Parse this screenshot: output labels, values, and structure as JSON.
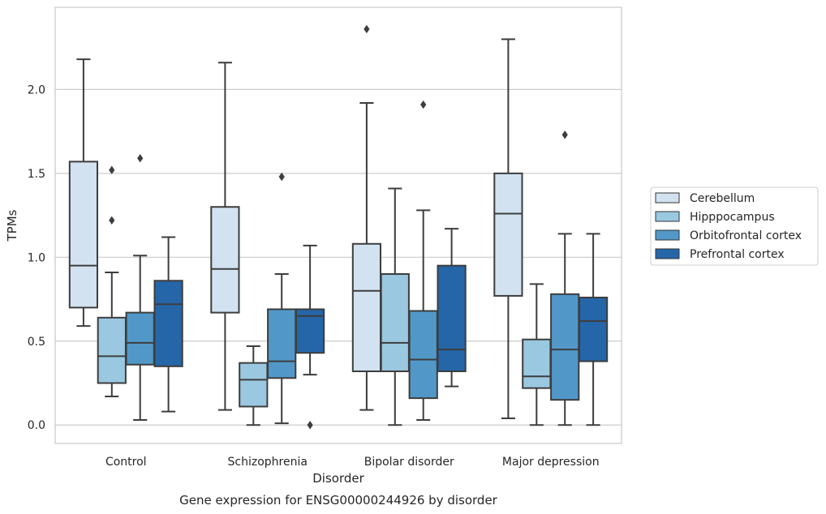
{
  "chart_data": {
    "type": "box",
    "caption": "Gene expression for ENSG00000244926 by disorder",
    "xlabel": "Disorder",
    "ylabel": "TPMs",
    "ylim": [
      -0.11,
      2.49
    ],
    "yticks": [
      0.0,
      0.5,
      1.0,
      1.5,
      2.0
    ],
    "ytick_labels": [
      "0.0",
      "0.5",
      "1.0",
      "1.5",
      "2.0"
    ],
    "grid": "horizontal",
    "legend_position": "right",
    "categories": [
      "Control",
      "Schizophrenia",
      "Bipolar disorder",
      "Major depression"
    ],
    "series": [
      {
        "name": "Cerebellum",
        "color": "#d2e2f1",
        "boxes": [
          {
            "whisker_low": 0.59,
            "q1": 0.7,
            "median": 0.95,
            "q3": 1.57,
            "whisker_high": 2.18,
            "outliers": []
          },
          {
            "whisker_low": 0.09,
            "q1": 0.67,
            "median": 0.93,
            "q3": 1.3,
            "whisker_high": 2.16,
            "outliers": []
          },
          {
            "whisker_low": 0.09,
            "q1": 0.32,
            "median": 0.8,
            "q3": 1.08,
            "whisker_high": 1.92,
            "outliers": [
              2.36
            ]
          },
          {
            "whisker_low": 0.04,
            "q1": 0.77,
            "median": 1.26,
            "q3": 1.5,
            "whisker_high": 2.3,
            "outliers": []
          }
        ]
      },
      {
        "name": "Hipppocampus",
        "color": "#9ac8e0",
        "boxes": [
          {
            "whisker_low": 0.17,
            "q1": 0.25,
            "median": 0.41,
            "q3": 0.64,
            "whisker_high": 0.91,
            "outliers": [
              1.22,
              1.52
            ]
          },
          {
            "whisker_low": 0.0,
            "q1": 0.11,
            "median": 0.27,
            "q3": 0.37,
            "whisker_high": 0.47,
            "outliers": []
          },
          {
            "whisker_low": 0.0,
            "q1": 0.32,
            "median": 0.49,
            "q3": 0.9,
            "whisker_high": 1.41,
            "outliers": []
          },
          {
            "whisker_low": 0.0,
            "q1": 0.22,
            "median": 0.29,
            "q3": 0.51,
            "whisker_high": 0.84,
            "outliers": []
          }
        ]
      },
      {
        "name": "Orbitofrontal cortex",
        "color": "#5198c8",
        "boxes": [
          {
            "whisker_low": 0.03,
            "q1": 0.36,
            "median": 0.49,
            "q3": 0.67,
            "whisker_high": 1.01,
            "outliers": [
              1.59
            ]
          },
          {
            "whisker_low": 0.01,
            "q1": 0.28,
            "median": 0.38,
            "q3": 0.69,
            "whisker_high": 0.9,
            "outliers": [
              1.48
            ]
          },
          {
            "whisker_low": 0.03,
            "q1": 0.16,
            "median": 0.39,
            "q3": 0.68,
            "whisker_high": 1.28,
            "outliers": [
              1.91
            ]
          },
          {
            "whisker_low": 0.0,
            "q1": 0.15,
            "median": 0.45,
            "q3": 0.78,
            "whisker_high": 1.14,
            "outliers": [
              1.73
            ]
          }
        ]
      },
      {
        "name": "Prefrontal cortex",
        "color": "#2566a9",
        "boxes": [
          {
            "whisker_low": 0.08,
            "q1": 0.35,
            "median": 0.72,
            "q3": 0.86,
            "whisker_high": 1.12,
            "outliers": []
          },
          {
            "whisker_low": 0.3,
            "q1": 0.43,
            "median": 0.65,
            "q3": 0.69,
            "whisker_high": 1.07,
            "outliers": [
              0.0
            ]
          },
          {
            "whisker_low": 0.23,
            "q1": 0.32,
            "median": 0.45,
            "q3": 0.95,
            "whisker_high": 1.17,
            "outliers": []
          },
          {
            "whisker_low": 0.0,
            "q1": 0.38,
            "median": 0.62,
            "q3": 0.76,
            "whisker_high": 1.14,
            "outliers": []
          }
        ]
      }
    ]
  }
}
